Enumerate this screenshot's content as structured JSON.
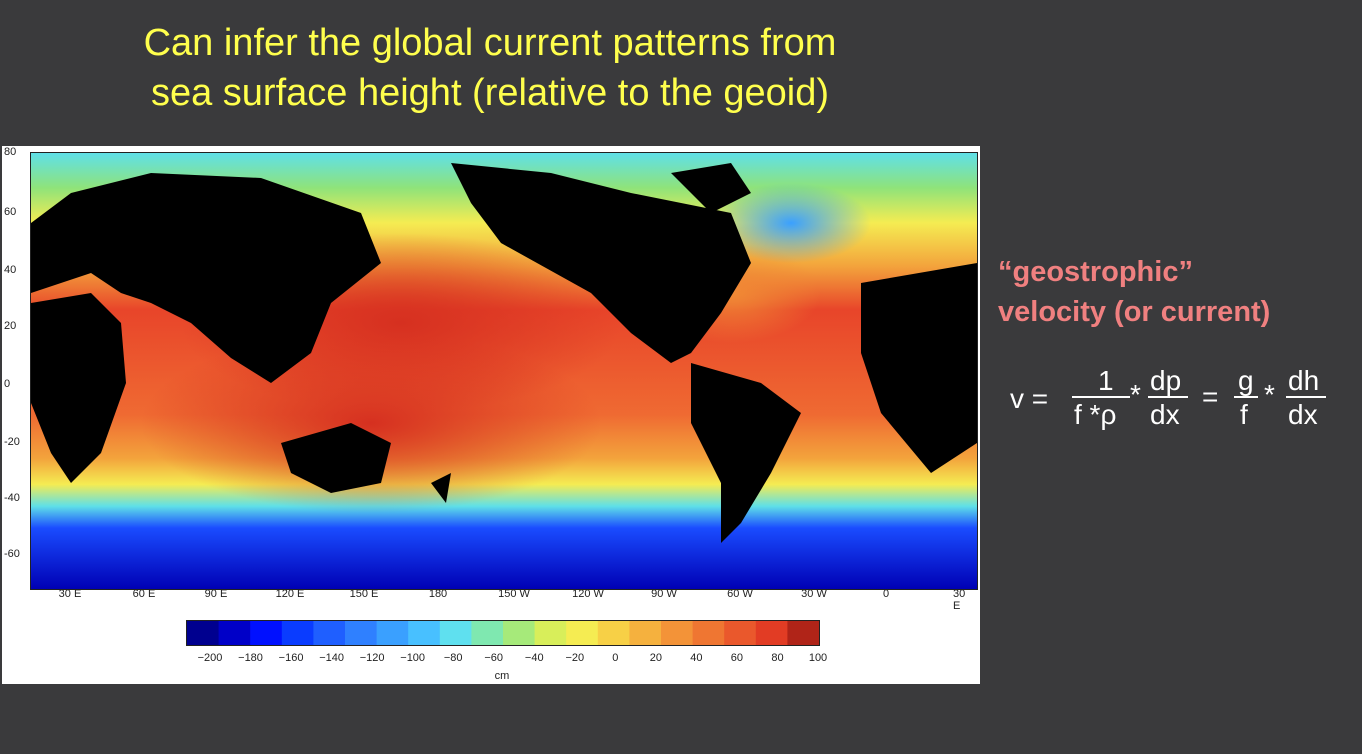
{
  "slide": {
    "title_line1": "Can infer the global current patterns from",
    "title_line2": "sea surface height (relative to the geoid)",
    "side_heading_line1": "“geostrophic”",
    "side_heading_line2": "velocity (or current)"
  },
  "formula": {
    "v": "v =",
    "one": "1",
    "f_rho": "f *ρ",
    "star1": "*",
    "dp": "dp",
    "dx1": "dx",
    "eq": "=",
    "g": "g",
    "f": "f",
    "star2": "*",
    "dh": "dh",
    "dx2": "dx"
  },
  "map": {
    "lat_ticks": [
      "80",
      "60",
      "40",
      "20",
      "0",
      "-20",
      "-40",
      "-60"
    ],
    "lon_ticks": [
      "30 E",
      "60 E",
      "90 E",
      "120 E",
      "150 E",
      "180",
      "150 W",
      "120 W",
      "90 W",
      "60 W",
      "30 W",
      "0",
      "30 E"
    ],
    "colorbar_ticks": [
      "−200",
      "−180",
      "−160",
      "−140",
      "−120",
      "−100",
      "−80",
      "−60",
      "−40",
      "−20",
      "0",
      "20",
      "40",
      "60",
      "80",
      "100"
    ],
    "colorbar_unit": "cm",
    "colors": {
      "deep_blue": "#0000b4",
      "blue": "#1a4cff",
      "cyan": "#5fe0e8",
      "green": "#8fe37a",
      "yellow": "#f5ec52",
      "orange": "#f3a33c",
      "red": "#e8452a",
      "dark_red": "#b02418",
      "land": "#000000"
    }
  }
}
